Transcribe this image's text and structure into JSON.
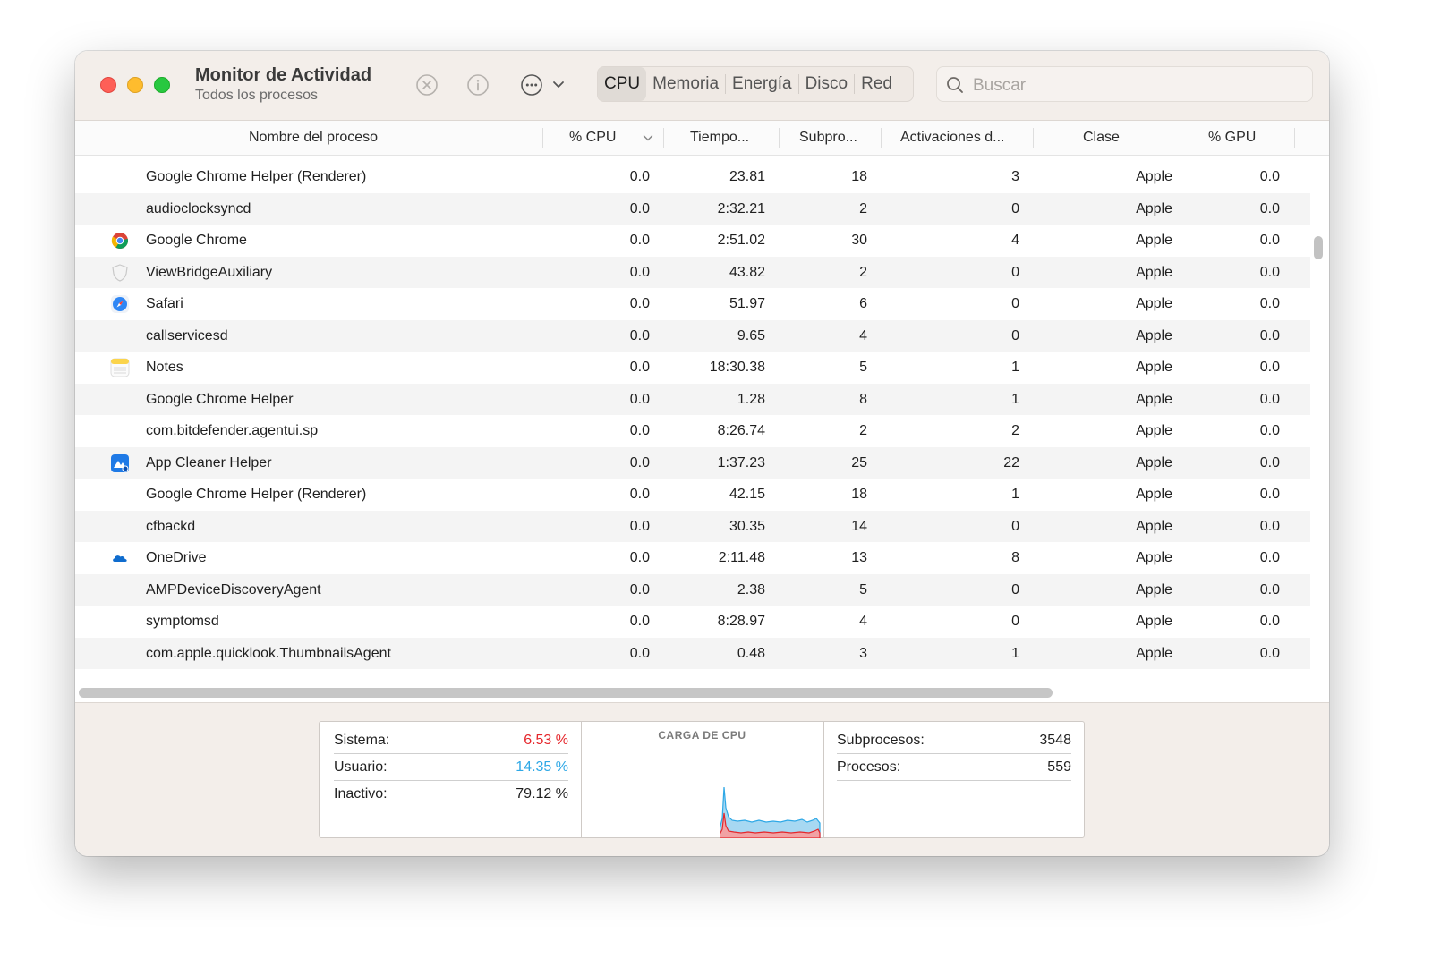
{
  "window": {
    "title": "Monitor de Actividad",
    "subtitle": "Todos los procesos"
  },
  "toolbar": {
    "icons": [
      "stop-process-icon",
      "info-icon",
      "more-actions-icon",
      "chevron-down-icon"
    ],
    "tabs": [
      {
        "label": "CPU",
        "active": true
      },
      {
        "label": "Memoria",
        "active": false
      },
      {
        "label": "Energía",
        "active": false
      },
      {
        "label": "Disco",
        "active": false
      },
      {
        "label": "Red",
        "active": false
      }
    ],
    "search_placeholder": "Buscar"
  },
  "table": {
    "columns": [
      "Nombre del proceso",
      "% CPU",
      "Tiempo...",
      "Subpro...",
      "Activaciones d...",
      "Clase",
      "% GPU"
    ],
    "sorted_column": "% CPU",
    "rows": [
      {
        "name": "Google Chrome Helper (Renderer)",
        "cpu": "0.0",
        "time": "23.81",
        "threads": "18",
        "wakeups": "3",
        "class": "Apple",
        "gpu": "0.0",
        "icon": ""
      },
      {
        "name": "audioclocksyncd",
        "cpu": "0.0",
        "time": "2:32.21",
        "threads": "2",
        "wakeups": "0",
        "class": "Apple",
        "gpu": "0.0",
        "icon": ""
      },
      {
        "name": "Google Chrome",
        "cpu": "0.0",
        "time": "2:51.02",
        "threads": "30",
        "wakeups": "4",
        "class": "Apple",
        "gpu": "0.0",
        "icon": "chrome-icon"
      },
      {
        "name": "ViewBridgeAuxiliary",
        "cpu": "0.0",
        "time": "43.82",
        "threads": "2",
        "wakeups": "0",
        "class": "Apple",
        "gpu": "0.0",
        "icon": "shield-icon"
      },
      {
        "name": "Safari",
        "cpu": "0.0",
        "time": "51.97",
        "threads": "6",
        "wakeups": "0",
        "class": "Apple",
        "gpu": "0.0",
        "icon": "safari-icon"
      },
      {
        "name": "callservicesd",
        "cpu": "0.0",
        "time": "9.65",
        "threads": "4",
        "wakeups": "0",
        "class": "Apple",
        "gpu": "0.0",
        "icon": ""
      },
      {
        "name": "Notes",
        "cpu": "0.0",
        "time": "18:30.38",
        "threads": "5",
        "wakeups": "1",
        "class": "Apple",
        "gpu": "0.0",
        "icon": "notes-icon"
      },
      {
        "name": "Google Chrome Helper",
        "cpu": "0.0",
        "time": "1.28",
        "threads": "8",
        "wakeups": "1",
        "class": "Apple",
        "gpu": "0.0",
        "icon": ""
      },
      {
        "name": "com.bitdefender.agentui.sp",
        "cpu": "0.0",
        "time": "8:26.74",
        "threads": "2",
        "wakeups": "2",
        "class": "Apple",
        "gpu": "0.0",
        "icon": ""
      },
      {
        "name": "App Cleaner Helper",
        "cpu": "0.0",
        "time": "1:37.23",
        "threads": "25",
        "wakeups": "22",
        "class": "Apple",
        "gpu": "0.0",
        "icon": "app-cleaner-icon"
      },
      {
        "name": "Google Chrome Helper (Renderer)",
        "cpu": "0.0",
        "time": "42.15",
        "threads": "18",
        "wakeups": "1",
        "class": "Apple",
        "gpu": "0.0",
        "icon": ""
      },
      {
        "name": "cfbackd",
        "cpu": "0.0",
        "time": "30.35",
        "threads": "14",
        "wakeups": "0",
        "class": "Apple",
        "gpu": "0.0",
        "icon": ""
      },
      {
        "name": "OneDrive",
        "cpu": "0.0",
        "time": "2:11.48",
        "threads": "13",
        "wakeups": "8",
        "class": "Apple",
        "gpu": "0.0",
        "icon": "onedrive-icon"
      },
      {
        "name": "AMPDeviceDiscoveryAgent",
        "cpu": "0.0",
        "time": "2.38",
        "threads": "5",
        "wakeups": "0",
        "class": "Apple",
        "gpu": "0.0",
        "icon": ""
      },
      {
        "name": "symptomsd",
        "cpu": "0.0",
        "time": "8:28.97",
        "threads": "4",
        "wakeups": "0",
        "class": "Apple",
        "gpu": "0.0",
        "icon": ""
      },
      {
        "name": "com.apple.quicklook.ThumbnailsAgent",
        "cpu": "0.0",
        "time": "0.48",
        "threads": "3",
        "wakeups": "1",
        "class": "Apple",
        "gpu": "0.0",
        "icon": ""
      }
    ]
  },
  "stats": {
    "system_label": "Sistema:",
    "system_value": "6.53 %",
    "user_label": "Usuario:",
    "user_value": "14.35 %",
    "idle_label": "Inactivo:",
    "idle_value": "79.12 %",
    "chart_title": "CARGA DE CPU",
    "threads_label": "Subprocesos:",
    "threads_value": "3548",
    "processes_label": "Procesos:",
    "processes_value": "559"
  },
  "colors": {
    "system": "#e5262b",
    "user": "#2ea8e6",
    "accent_tab": "#e0dbd6"
  }
}
